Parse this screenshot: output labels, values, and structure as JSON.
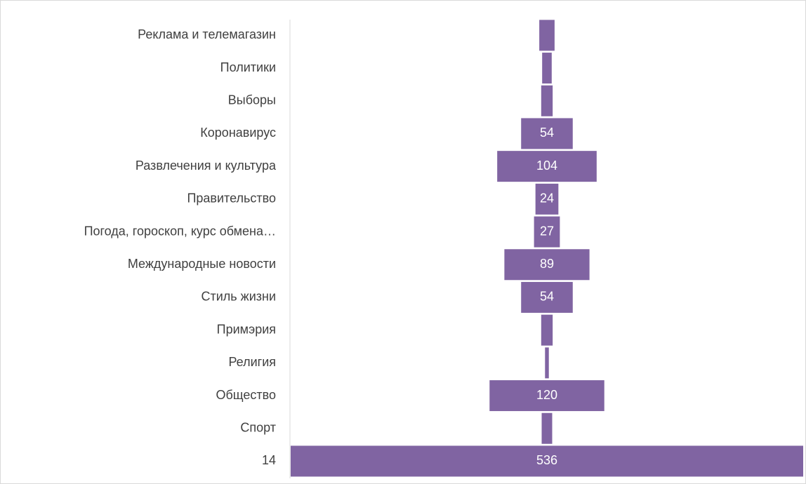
{
  "chart_data": {
    "type": "funnel",
    "categories": [
      "Реклама и телемагазин",
      "Политики",
      "Выборы",
      "Коронавирус",
      "Развлечения и культура",
      "Правительство",
      "Погода, гороскоп, курс обмена…",
      "Международные новости",
      "Стиль жизни",
      "Примэрия",
      "Религия",
      "Общество",
      "Спорт",
      "14"
    ],
    "values": [
      16,
      10,
      12,
      54,
      104,
      24,
      27,
      89,
      54,
      12,
      4,
      120,
      11,
      536
    ],
    "value_labels": [
      null,
      null,
      null,
      "54",
      "104",
      "24",
      "27",
      "89",
      "54",
      null,
      null,
      "120",
      null,
      "536"
    ],
    "color": "#8064a2"
  }
}
